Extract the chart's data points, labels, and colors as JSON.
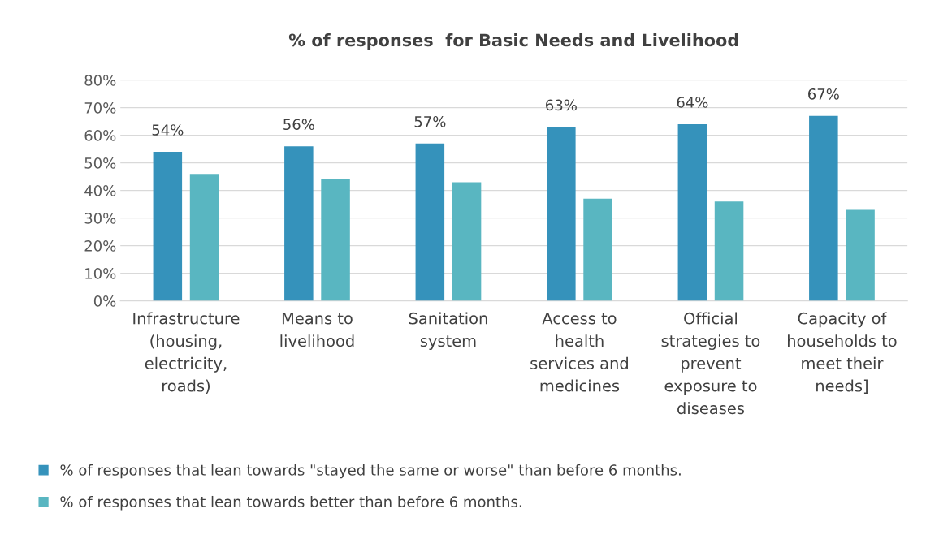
{
  "chart_data": {
    "type": "bar",
    "title": "% of responses  for Basic Needs and Livelihood",
    "categories": [
      "Infrastructure\n(housing,\nelectricity,\nroads)",
      "Means to\nlivelihood",
      "Sanitation\nsystem",
      "Access to\nhealth\nservices and\nmedicines",
      "Official\nstrategies to\nprevent\nexposure to\ndiseases",
      "Capacity of\nhouseholds to\nmeet their\nneeds]"
    ],
    "series": [
      {
        "name": "% of responses that lean towards \"stayed the same or worse\" than before 6 months.",
        "color": "#3592bb",
        "values": [
          54,
          56,
          57,
          63,
          64,
          67
        ],
        "value_labels": [
          "54%",
          "56%",
          "57%",
          "63%",
          "64%",
          "67%"
        ]
      },
      {
        "name": "% of responses that lean towards better than before 6 months.",
        "color": "#59b6c1",
        "values": [
          46,
          44,
          43,
          37,
          36,
          33
        ]
      }
    ],
    "ylim": [
      0,
      80
    ],
    "yticks": [
      {
        "value": 0,
        "label": "0%"
      },
      {
        "value": 10,
        "label": "10%"
      },
      {
        "value": 20,
        "label": "20%"
      },
      {
        "value": 30,
        "label": "30%"
      },
      {
        "value": 40,
        "label": "40%"
      },
      {
        "value": 50,
        "label": "50%"
      },
      {
        "value": 60,
        "label": "60%"
      },
      {
        "value": 70,
        "label": "70%"
      },
      {
        "value": 80,
        "label": "80%"
      }
    ],
    "grid": "y",
    "legend": "bottom"
  }
}
